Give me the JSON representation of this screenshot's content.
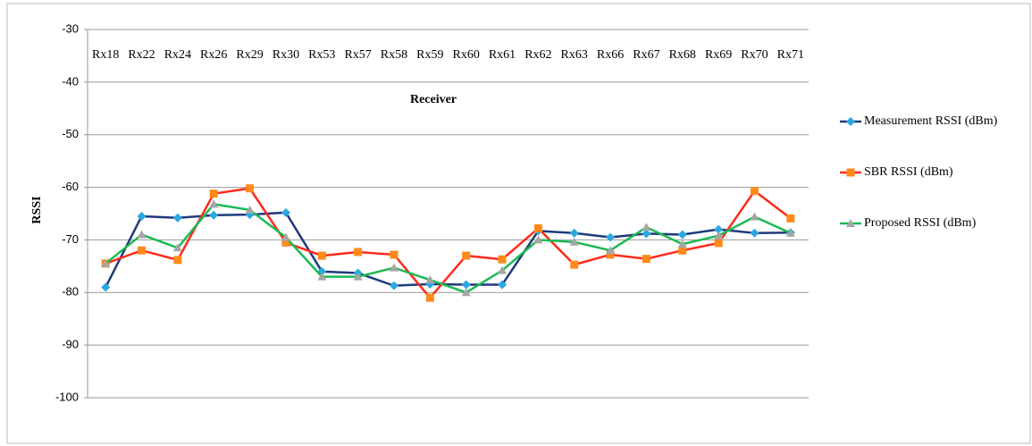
{
  "chart_data": {
    "type": "line",
    "x_label": "Receiver",
    "y_label": "RSSI",
    "categories": [
      "Rx18",
      "Rx22",
      "Rx24",
      "Rx26",
      "Rx29",
      "Rx30",
      "Rx53",
      "Rx57",
      "Rx58",
      "Rx59",
      "Rx60",
      "Rx61",
      "Rx62",
      "Rx63",
      "Rx66",
      "Rx67",
      "Rx68",
      "Rx69",
      "Rx70",
      "Rx71"
    ],
    "series": [
      {
        "name": "Measurement RSSI (dBm)",
        "color": "#1f3a7a",
        "marker_color": "#2aa8e0",
        "marker": "diamond",
        "values": [
          -79,
          -65.5,
          -65.8,
          -65.3,
          -65.2,
          -64.8,
          -76,
          -76.3,
          -78.7,
          -78.4,
          -78.5,
          -78.5,
          -68.3,
          -68.7,
          -69.5,
          -68.8,
          -69,
          -68,
          -68.7,
          -68.6
        ]
      },
      {
        "name": "SBR RSSI (dBm)",
        "color": "#ff2a1a",
        "marker_color": "#ff8a1a",
        "marker": "square",
        "values": [
          -74.5,
          -72,
          -73.8,
          -61.2,
          -60.2,
          -70.5,
          -73,
          -72.3,
          -72.8,
          -81,
          -73,
          -73.7,
          -67.8,
          -74.7,
          -72.8,
          -73.6,
          -72,
          -70.6,
          -60.7,
          -65.9
        ]
      },
      {
        "name": "Proposed RSSI (dBm)",
        "color": "#1db954",
        "marker_color": "#a6a6a6",
        "marker": "triangle",
        "values": [
          -74.5,
          -69,
          -71.5,
          -63.2,
          -64.3,
          -69.5,
          -77,
          -77,
          -75.3,
          -77.6,
          -80,
          -75.8,
          -70,
          -70.4,
          -72,
          -67.6,
          -70.8,
          -69.2,
          -65.6,
          -68.7
        ]
      }
    ],
    "ylim": [
      -100,
      -30
    ],
    "yticks": [
      -30,
      -40,
      -50,
      -60,
      -70,
      -80,
      -90,
      -100
    ],
    "grid": true,
    "legend": "right"
  }
}
